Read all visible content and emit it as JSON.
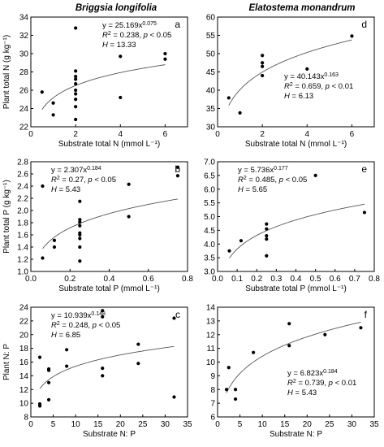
{
  "columns": [
    "Briggsia longifolia",
    "Elatostema monandrum"
  ],
  "chart_data": [
    {
      "type": "scatter",
      "letter": "a",
      "xlabel": "Substrate total N (mmol L⁻¹)",
      "ylabel": "Plant total N (g kg⁻¹)",
      "xlim": [
        0,
        7
      ],
      "ylim": [
        22,
        34
      ],
      "xticks": [
        0,
        2,
        4,
        6
      ],
      "yticks": [
        22,
        24,
        26,
        28,
        30,
        32,
        34
      ],
      "points": [
        [
          0.5,
          25.8
        ],
        [
          1,
          23.3
        ],
        [
          1,
          24.6
        ],
        [
          2,
          22.8
        ],
        [
          2,
          24.2
        ],
        [
          2,
          25.0
        ],
        [
          2,
          25.6
        ],
        [
          2,
          26.0
        ],
        [
          2,
          26.7
        ],
        [
          2,
          27.2
        ],
        [
          2,
          27.5
        ],
        [
          2,
          28.1
        ],
        [
          2,
          32.8
        ],
        [
          4,
          25.2
        ],
        [
          4,
          29.7
        ],
        [
          6,
          29.4
        ],
        [
          6,
          30.0
        ]
      ],
      "fit": {
        "a": 25.169,
        "b": 0.075,
        "x_range": [
          0.5,
          6
        ]
      },
      "equation": "y = 25.169x",
      "exponent": "0.075",
      "r2": "0.238",
      "p": "0.05",
      "p_op": "<",
      "H": "13.33",
      "ann_pos": "top-right"
    },
    {
      "type": "scatter",
      "letter": "d",
      "xlabel": "Substrate total N (mmol L⁻¹)",
      "ylabel": "",
      "xlim": [
        0,
        7
      ],
      "ylim": [
        30,
        60
      ],
      "xticks": [
        0,
        2,
        4,
        6
      ],
      "yticks": [
        30,
        35,
        40,
        45,
        50,
        55,
        60
      ],
      "points": [
        [
          0.5,
          37.9
        ],
        [
          1,
          33.8
        ],
        [
          2,
          44.0
        ],
        [
          2,
          46.5
        ],
        [
          2,
          47.5
        ],
        [
          2,
          49.5
        ],
        [
          4,
          45.8
        ],
        [
          6,
          54.8
        ]
      ],
      "fit": {
        "a": 40.143,
        "b": 0.163,
        "x_range": [
          0.5,
          6
        ]
      },
      "equation": "y = 40.143x",
      "exponent": "0.163",
      "r2": "0.659",
      "p": "0.01",
      "p_op": "<",
      "H": "6.13",
      "ann_pos": "center"
    },
    {
      "type": "scatter",
      "letter": "b",
      "xlabel": "Substrate total P (mmol L⁻¹)",
      "ylabel": "Plant total P (g kg⁻¹)",
      "xlim": [
        0.0,
        0.8
      ],
      "ylim": [
        1.0,
        2.8
      ],
      "xticks": [
        0.0,
        0.2,
        0.4,
        0.6,
        0.8
      ],
      "yticks": [
        1.0,
        1.2,
        1.4,
        1.6,
        1.8,
        2.0,
        2.2,
        2.4,
        2.6,
        2.8
      ],
      "points": [
        [
          0.06,
          1.22
        ],
        [
          0.06,
          2.4
        ],
        [
          0.12,
          1.4
        ],
        [
          0.12,
          1.51
        ],
        [
          0.25,
          1.17
        ],
        [
          0.25,
          1.4
        ],
        [
          0.25,
          1.54
        ],
        [
          0.25,
          1.6
        ],
        [
          0.25,
          1.63
        ],
        [
          0.25,
          1.75
        ],
        [
          0.25,
          1.81
        ],
        [
          0.25,
          1.85
        ],
        [
          0.25,
          2.15
        ],
        [
          0.5,
          1.9
        ],
        [
          0.5,
          2.43
        ],
        [
          0.75,
          2.57
        ],
        [
          0.75,
          2.71
        ]
      ],
      "fit": {
        "a": 2.307,
        "b": 0.184,
        "x_range": [
          0.06,
          0.75
        ]
      },
      "equation": "y = 2.307x",
      "exponent": "0.184",
      "r2": "0.27",
      "p": "0.05",
      "p_op": "<",
      "H": "5.43",
      "ann_pos": "top-left"
    },
    {
      "type": "scatter",
      "letter": "e",
      "xlabel": "Substrate total P (mmol L⁻¹)",
      "ylabel": "",
      "xlim": [
        0.0,
        0.8
      ],
      "ylim": [
        3.0,
        7.0
      ],
      "xticks": [
        0.0,
        0.1,
        0.2,
        0.3,
        0.4,
        0.5,
        0.6,
        0.7,
        0.8
      ],
      "yticks": [
        3.0,
        3.5,
        4.0,
        4.5,
        5.0,
        5.5,
        6.0,
        6.5,
        7.0
      ],
      "points": [
        [
          0.06,
          3.75
        ],
        [
          0.12,
          4.12
        ],
        [
          0.25,
          3.57
        ],
        [
          0.25,
          4.18
        ],
        [
          0.25,
          4.3
        ],
        [
          0.25,
          4.55
        ],
        [
          0.25,
          4.73
        ],
        [
          0.5,
          6.5
        ],
        [
          0.75,
          5.15
        ]
      ],
      "fit": {
        "a": 5.736,
        "b": 0.177,
        "x_range": [
          0.06,
          0.75
        ]
      },
      "equation": "y = 5.736x",
      "exponent": "0.177",
      "r2": "0.485",
      "p": "0.05",
      "p_op": "<",
      "H": "5.65",
      "ann_pos": "top-left"
    },
    {
      "type": "scatter",
      "letter": "c",
      "xlabel": "Substrate N: P",
      "ylabel": "Plant N: P",
      "xlim": [
        0,
        35
      ],
      "ylim": [
        8,
        24
      ],
      "xticks": [
        0,
        5,
        10,
        15,
        20,
        25,
        30,
        35
      ],
      "yticks": [
        8,
        10,
        12,
        14,
        16,
        18,
        20,
        22,
        24
      ],
      "points": [
        [
          2,
          9.6
        ],
        [
          2,
          9.9
        ],
        [
          2,
          16.7
        ],
        [
          4,
          10.5
        ],
        [
          4,
          13.0
        ],
        [
          4,
          14.8
        ],
        [
          4,
          15.0
        ],
        [
          8,
          15.4
        ],
        [
          8,
          17.8
        ],
        [
          16,
          14.0
        ],
        [
          16,
          15.1
        ],
        [
          16,
          22.6
        ],
        [
          16,
          23.5
        ],
        [
          24,
          15.8
        ],
        [
          24,
          18.6
        ],
        [
          32,
          10.9
        ],
        [
          32,
          22.4
        ]
      ],
      "fit": {
        "a": 10.939,
        "b": 0.148,
        "x_range": [
          2,
          32
        ]
      },
      "equation": "y = 10.939x",
      "exponent": "0.148",
      "r2": "0.248",
      "p": "0.05",
      "p_op": "<",
      "H": "6.85",
      "ann_pos": "top-left"
    },
    {
      "type": "scatter",
      "letter": "f",
      "xlabel": "Substrate N: P",
      "ylabel": "",
      "xlim": [
        0,
        35
      ],
      "ylim": [
        6,
        14
      ],
      "xticks": [
        0,
        5,
        10,
        15,
        20,
        25,
        30,
        35
      ],
      "yticks": [
        6,
        7,
        8,
        9,
        10,
        11,
        12,
        13,
        14
      ],
      "points": [
        [
          2,
          8.0
        ],
        [
          2.5,
          9.6
        ],
        [
          4,
          7.3
        ],
        [
          4,
          8.0
        ],
        [
          8,
          10.7
        ],
        [
          16,
          11.2
        ],
        [
          16,
          12.8
        ],
        [
          24,
          12.0
        ],
        [
          32,
          12.5
        ]
      ],
      "fit": {
        "a": 6.823,
        "b": 0.184,
        "x_range": [
          2,
          32
        ]
      },
      "equation": "y = 6.823x",
      "exponent": "0.184",
      "r2": "0.739",
      "p": "0.01",
      "p_op": "<",
      "H": "5.43",
      "ann_pos": "bottom-right"
    }
  ]
}
